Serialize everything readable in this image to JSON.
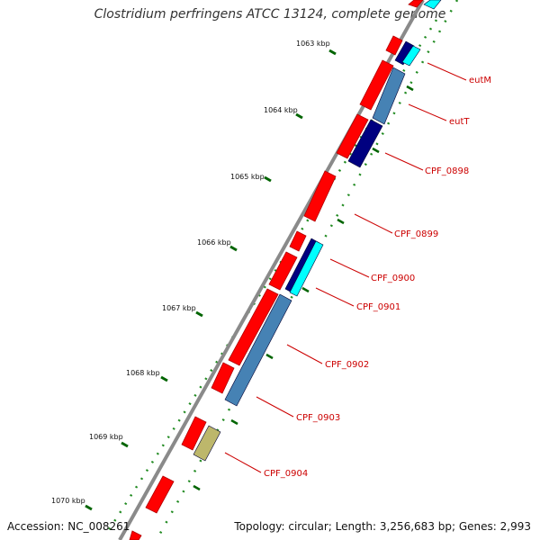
{
  "title": "Clostridium perfringens ATCC 13124, complete genome",
  "footer": {
    "accession": "Accession: NC_008261",
    "topology": "Topology: circular; Length: 3,256,683 bp; Genes: 2,993"
  },
  "ticks": [
    "1063 kbp",
    "1064 kbp",
    "1065 kbp",
    "1066 kbp",
    "1067 kbp",
    "1068 kbp",
    "1069 kbp",
    "1070 kbp"
  ],
  "gene_labels": [
    "eutM",
    "eutT",
    "CPF_0898",
    "CPF_0899",
    "CPF_0900",
    "CPF_0901",
    "CPF_0902",
    "CPF_0903",
    "CPF_0904"
  ],
  "colors": {
    "gene_red": "#ff0000",
    "cyan": "#00ffff",
    "navy": "#000080",
    "steel_blue": "#4682b4",
    "khaki": "#bdb76b",
    "backbone": "#808080",
    "tick_green": "#006400",
    "label_red": "#cc0000"
  }
}
